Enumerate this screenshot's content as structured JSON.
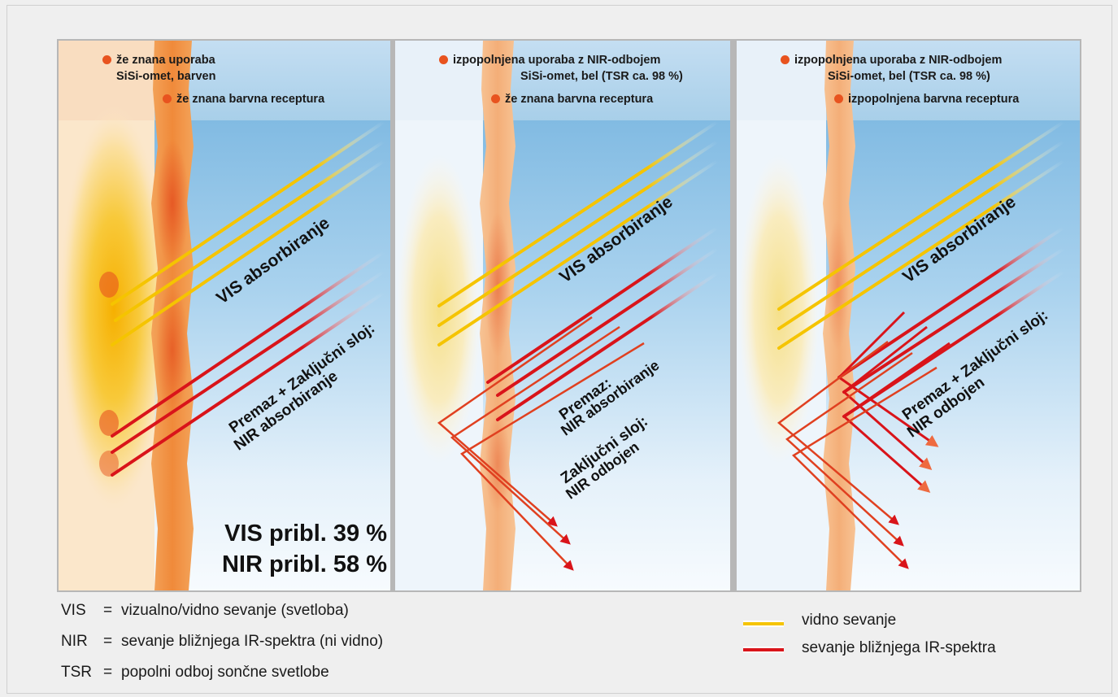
{
  "panels": [
    {
      "top_label_1": "že znana uporaba",
      "top_label_1b": "SiSi-omet, barven",
      "top_label_2": "že znana barvna receptura",
      "vis_label": "VIS absorbiranje",
      "nir_label_1": "Premaz + Zaključni sloj:",
      "nir_label_2": "NIR absorbiranje",
      "stats_vis": "VIS pribl. 39 %",
      "stats_nir": "NIR pribl. 58 %"
    },
    {
      "top_label_1": "izpopolnjena uporaba z NIR-odbojem",
      "top_label_1b": "SiSi-omet, bel (TSR ca. 98 %)",
      "top_label_2": "že znana barvna receptura",
      "vis_label": "VIS absorbiranje",
      "nir_label_1": "Premaz:",
      "nir_label_2": "NIR absorbiranje",
      "nir_label_3": "Zaključni sloj:",
      "nir_label_4": "NIR odbojen"
    },
    {
      "top_label_1": "izpopolnjena uporaba z NIR-odbojem",
      "top_label_1b": "SiSi-omet, bel (TSR ca. 98 %)",
      "top_label_2": "izpopolnjena barvna receptura",
      "vis_label": "VIS absorbiranje",
      "nir_label_1": "Premaz + Zaključni sloj:",
      "nir_label_2": "NIR odbojen"
    }
  ],
  "legend": {
    "rows": [
      {
        "key": "VIS",
        "eq": "=",
        "text": "vizualno/vidno sevanje (svetloba)"
      },
      {
        "key": "NIR",
        "eq": "=",
        "text": "sevanje bližnjega IR-spektra (ni vidno)"
      },
      {
        "key": "TSR",
        "eq": "=",
        "text": "popolni odboj sončne svetlobe"
      }
    ],
    "visible_label": "vidno sevanje",
    "nir_label": "sevanje bližnjega IR-spektra"
  },
  "colors": {
    "marker": "#e8531f",
    "visible": "#f5c400",
    "nir": "#d9141a",
    "reflect": "#ee6a40",
    "sky_top": "#79b6df",
    "peach": "#f8d8b6",
    "plaster": "#f0a262"
  },
  "icons": {
    "marker": "bullet-dot-icon",
    "visible_swatch": "yellow-line-icon",
    "nir_swatch": "red-line-icon"
  }
}
